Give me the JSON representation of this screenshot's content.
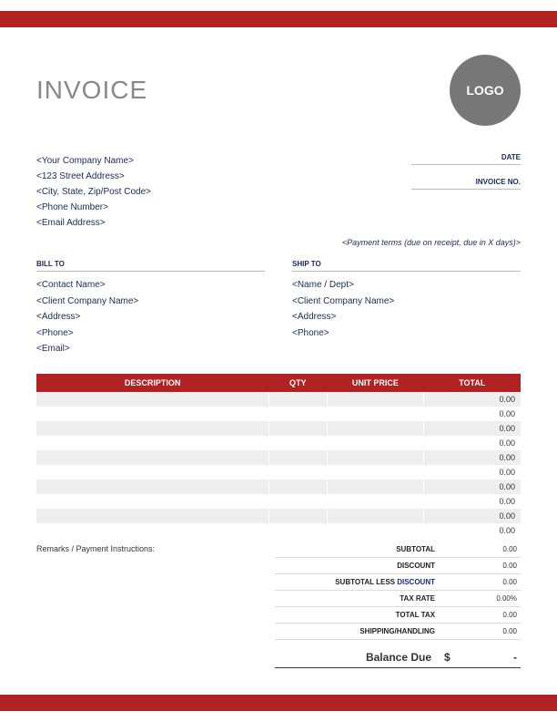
{
  "colors": {
    "accent": "#b12222",
    "header_bg": "#b12222",
    "balance_border": "#333333"
  },
  "header": {
    "title": "INVOICE",
    "logo_text": "LOGO"
  },
  "company": {
    "name": "<Your Company Name>",
    "street": "<123 Street Address>",
    "city_state_zip": "<City, State, Zip/Post Code>",
    "phone": "<Phone Number>",
    "email": "<Email Address>"
  },
  "meta": {
    "date_label": "DATE",
    "invoice_no_label": "INVOICE NO.",
    "payment_terms": "<Payment terms (due on receipt, due in X days)>"
  },
  "bill_to": {
    "header": "BILL TO",
    "contact": "<Contact Name>",
    "company": "<Client Company Name>",
    "address": "<Address>",
    "phone": "<Phone>",
    "email": "<Email>"
  },
  "ship_to": {
    "header": "SHIP TO",
    "name_dept": "<Name / Dept>",
    "company": "<Client Company Name>",
    "address": "<Address>",
    "phone": "<Phone>"
  },
  "table": {
    "columns": {
      "description": "DESCRIPTION",
      "qty": "QTY",
      "unit_price": "UNIT PRICE",
      "total": "TOTAL"
    },
    "rows": [
      {
        "desc": "",
        "qty": "",
        "unit": "",
        "total": "0.00"
      },
      {
        "desc": "",
        "qty": "",
        "unit": "",
        "total": "0.00"
      },
      {
        "desc": "",
        "qty": "",
        "unit": "",
        "total": "0.00"
      },
      {
        "desc": "",
        "qty": "",
        "unit": "",
        "total": "0.00"
      },
      {
        "desc": "",
        "qty": "",
        "unit": "",
        "total": "0.00"
      },
      {
        "desc": "",
        "qty": "",
        "unit": "",
        "total": "0.00"
      },
      {
        "desc": "",
        "qty": "",
        "unit": "",
        "total": "0.00"
      },
      {
        "desc": "",
        "qty": "",
        "unit": "",
        "total": "0.00"
      },
      {
        "desc": "",
        "qty": "",
        "unit": "",
        "total": "0.00"
      },
      {
        "desc": "",
        "qty": "",
        "unit": "",
        "total": "0.00"
      }
    ]
  },
  "remarks_label": "Remarks / Payment Instructions:",
  "summary": {
    "subtotal": {
      "label": "SUBTOTAL",
      "value": "0.00"
    },
    "discount": {
      "label": "DISCOUNT",
      "value": "0.00"
    },
    "subtotal_less_discount": {
      "label": "SUBTOTAL LESS DISCOUNT",
      "value": "0.00"
    },
    "tax_rate": {
      "label": "TAX RATE",
      "value": "0.00%"
    },
    "total_tax": {
      "label": "TOTAL TAX",
      "value": "0.00"
    },
    "shipping": {
      "label": "SHIPPING/HANDLING",
      "value": "0.00"
    }
  },
  "balance": {
    "label": "Balance Due",
    "currency": "$",
    "value": "-"
  }
}
